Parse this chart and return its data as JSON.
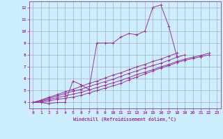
{
  "xlabel": "Windchill (Refroidissement éolien,°C)",
  "xlim": [
    -0.5,
    23.5
  ],
  "ylim": [
    3.5,
    12.5
  ],
  "xticks": [
    0,
    1,
    2,
    3,
    4,
    5,
    6,
    7,
    8,
    9,
    10,
    11,
    12,
    13,
    14,
    15,
    16,
    17,
    18,
    19,
    20,
    21,
    22,
    23
  ],
  "yticks": [
    4,
    5,
    6,
    7,
    8,
    9,
    10,
    11,
    12
  ],
  "bg_color": "#cceeff",
  "line_color": "#993399",
  "grid_color": "#aaaacc",
  "series": [
    [
      4.0,
      4.0,
      3.9,
      4.0,
      4.0,
      5.8,
      5.5,
      5.1,
      9.0,
      9.0,
      9.0,
      9.5,
      9.8,
      9.7,
      10.0,
      12.0,
      12.2,
      10.4,
      7.9,
      null,
      null,
      null,
      null,
      null
    ],
    [
      4.0,
      4.0,
      4.15,
      4.25,
      4.35,
      4.45,
      4.6,
      4.8,
      5.0,
      5.2,
      5.4,
      5.6,
      5.9,
      6.15,
      6.4,
      6.65,
      6.9,
      7.1,
      7.35,
      7.55,
      7.7,
      7.85,
      8.0,
      null
    ],
    [
      4.0,
      4.1,
      4.25,
      4.4,
      4.55,
      4.7,
      4.85,
      5.05,
      5.25,
      5.45,
      5.65,
      5.85,
      6.1,
      6.35,
      6.55,
      6.75,
      7.0,
      7.2,
      7.45,
      7.65,
      7.8,
      7.95,
      8.15,
      null
    ],
    [
      4.0,
      4.15,
      4.35,
      4.55,
      4.75,
      4.95,
      5.1,
      5.35,
      5.55,
      5.75,
      5.95,
      6.2,
      6.45,
      6.65,
      6.9,
      7.1,
      7.3,
      7.55,
      7.8,
      8.0,
      null,
      null,
      null,
      null
    ],
    [
      4.0,
      4.2,
      4.45,
      4.65,
      4.9,
      5.1,
      5.35,
      5.6,
      5.8,
      6.05,
      6.3,
      6.5,
      6.75,
      7.0,
      7.2,
      7.45,
      7.65,
      7.9,
      8.15,
      null,
      null,
      null,
      null,
      null
    ]
  ]
}
